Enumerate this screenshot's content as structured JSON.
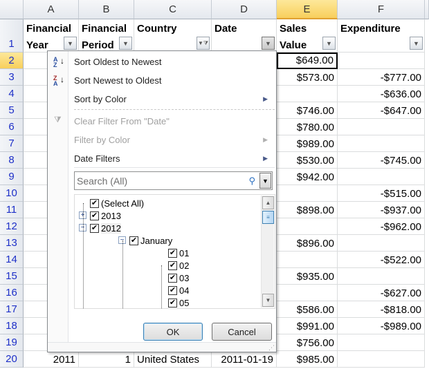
{
  "columns": [
    "A",
    "B",
    "C",
    "D",
    "E",
    "F"
  ],
  "selected_column": "E",
  "selected_row": "2",
  "header_row": {
    "row": "1",
    "cells": [
      "Financial Year",
      "Financial Period",
      "Country",
      "Date",
      "Sales Value",
      "Expenditure"
    ],
    "filter_active_column": "Country"
  },
  "rows": [
    {
      "row": "2",
      "e": "$649.00",
      "f": ""
    },
    {
      "row": "3",
      "e": "$573.00",
      "f": "-$777.00"
    },
    {
      "row": "4",
      "e": "",
      "f": "-$636.00"
    },
    {
      "row": "5",
      "e": "$746.00",
      "f": "-$647.00"
    },
    {
      "row": "6",
      "e": "$780.00",
      "f": ""
    },
    {
      "row": "7",
      "e": "$989.00",
      "f": ""
    },
    {
      "row": "8",
      "e": "$530.00",
      "f": "-$745.00"
    },
    {
      "row": "9",
      "e": "$942.00",
      "f": ""
    },
    {
      "row": "10",
      "e": "",
      "f": "-$515.00"
    },
    {
      "row": "11",
      "e": "$898.00",
      "f": "-$937.00"
    },
    {
      "row": "12",
      "e": "",
      "f": "-$962.00"
    },
    {
      "row": "13",
      "e": "$896.00",
      "f": ""
    },
    {
      "row": "14",
      "e": "",
      "f": "-$522.00"
    },
    {
      "row": "15",
      "e": "$935.00",
      "f": ""
    },
    {
      "row": "16",
      "e": "",
      "f": "-$627.00"
    },
    {
      "row": "17",
      "e": "$586.00",
      "f": "-$818.00"
    },
    {
      "row": "18",
      "e": "$991.00",
      "f": "-$989.00"
    },
    {
      "row": "19",
      "e": "$756.00",
      "f": ""
    },
    {
      "row": "20",
      "a": "2011",
      "b": "1",
      "c": "United States",
      "d": "2011-01-19",
      "e": "$985.00",
      "f": ""
    }
  ],
  "menu": {
    "sort_asc": "Sort Oldest to Newest",
    "sort_desc": "Sort Newest to Oldest",
    "sort_color": "Sort by Color",
    "clear_filter": "Clear Filter From \"Date\"",
    "filter_color": "Filter by Color",
    "date_filters": "Date Filters",
    "search_placeholder": "Search (All)",
    "tree": [
      {
        "label": "(Select All)",
        "checked": true
      },
      {
        "label": "2013",
        "checked": true,
        "expander": "+"
      },
      {
        "label": "2012",
        "checked": true,
        "expander": "−"
      },
      {
        "label": "January",
        "checked": true,
        "expander": "−"
      },
      {
        "label": "01",
        "checked": true
      },
      {
        "label": "02",
        "checked": true
      },
      {
        "label": "03",
        "checked": true
      },
      {
        "label": "04",
        "checked": true
      },
      {
        "label": "05",
        "checked": true
      }
    ],
    "ok": "OK",
    "cancel": "Cancel"
  }
}
